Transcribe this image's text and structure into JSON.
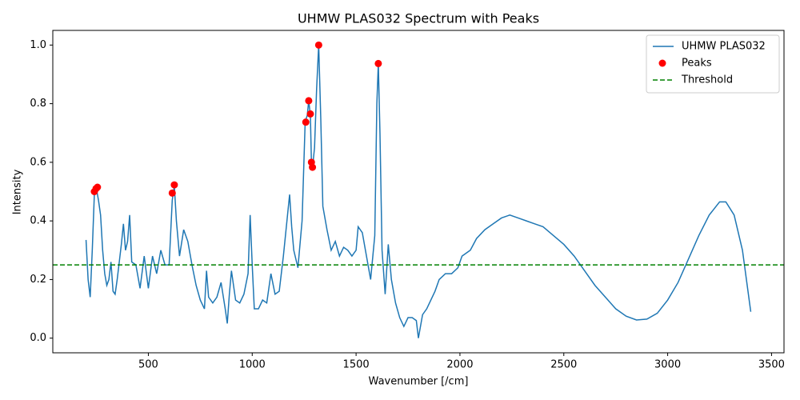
{
  "chart_data": {
    "type": "line",
    "title": "UHMW PLAS032 Spectrum with Peaks",
    "xlabel": "Wavenumber [/cm]",
    "ylabel": "Intensity",
    "x": [
      200,
      210,
      220,
      230,
      240,
      250,
      260,
      270,
      280,
      290,
      300,
      310,
      320,
      330,
      340,
      350,
      370,
      380,
      390,
      400,
      410,
      420,
      440,
      460,
      480,
      500,
      520,
      540,
      560,
      580,
      600,
      615,
      625,
      635,
      650,
      670,
      690,
      710,
      730,
      750,
      770,
      780,
      790,
      810,
      830,
      850,
      870,
      880,
      890,
      900,
      920,
      940,
      960,
      980,
      990,
      1000,
      1010,
      1030,
      1050,
      1070,
      1090,
      1110,
      1130,
      1150,
      1170,
      1180,
      1190,
      1200,
      1220,
      1240,
      1255,
      1265,
      1272,
      1280,
      1285,
      1290,
      1300,
      1310,
      1320,
      1330,
      1340,
      1360,
      1380,
      1400,
      1420,
      1440,
      1460,
      1480,
      1500,
      1510,
      1530,
      1550,
      1570,
      1590,
      1600,
      1607,
      1615,
      1625,
      1640,
      1655,
      1670,
      1690,
      1710,
      1730,
      1750,
      1770,
      1790,
      1800,
      1820,
      1840,
      1860,
      1880,
      1900,
      1930,
      1960,
      1990,
      2010,
      2050,
      2080,
      2120,
      2160,
      2200,
      2240,
      2280,
      2320,
      2360,
      2400,
      2450,
      2500,
      2550,
      2600,
      2650,
      2700,
      2750,
      2800,
      2850,
      2900,
      2950,
      3000,
      3050,
      3100,
      3150,
      3200,
      3250,
      3280,
      3320,
      3360,
      3400
    ],
    "series": [
      {
        "name": "UHMW PLAS032",
        "color": "#1f77b4",
        "values": [
          0.335,
          0.2,
          0.14,
          0.3,
          0.49,
          0.51,
          0.47,
          0.42,
          0.3,
          0.22,
          0.18,
          0.2,
          0.26,
          0.16,
          0.15,
          0.2,
          0.32,
          0.39,
          0.3,
          0.33,
          0.42,
          0.26,
          0.25,
          0.17,
          0.28,
          0.17,
          0.28,
          0.22,
          0.3,
          0.25,
          0.25,
          0.47,
          0.52,
          0.4,
          0.28,
          0.37,
          0.33,
          0.25,
          0.18,
          0.13,
          0.1,
          0.23,
          0.14,
          0.12,
          0.14,
          0.19,
          0.1,
          0.05,
          0.15,
          0.23,
          0.13,
          0.12,
          0.15,
          0.22,
          0.42,
          0.25,
          0.1,
          0.1,
          0.13,
          0.12,
          0.22,
          0.15,
          0.16,
          0.28,
          0.42,
          0.49,
          0.38,
          0.3,
          0.24,
          0.4,
          0.74,
          0.76,
          0.81,
          0.76,
          0.6,
          0.58,
          0.65,
          0.85,
          1.0,
          0.75,
          0.45,
          0.37,
          0.3,
          0.33,
          0.28,
          0.31,
          0.3,
          0.28,
          0.3,
          0.38,
          0.36,
          0.28,
          0.2,
          0.35,
          0.8,
          0.937,
          0.7,
          0.3,
          0.15,
          0.32,
          0.2,
          0.12,
          0.07,
          0.04,
          0.07,
          0.07,
          0.06,
          0.0,
          0.08,
          0.1,
          0.13,
          0.16,
          0.2,
          0.22,
          0.22,
          0.24,
          0.28,
          0.3,
          0.34,
          0.37,
          0.39,
          0.41,
          0.42,
          0.41,
          0.4,
          0.39,
          0.38,
          0.35,
          0.32,
          0.28,
          0.23,
          0.18,
          0.14,
          0.1,
          0.075,
          0.062,
          0.065,
          0.085,
          0.13,
          0.19,
          0.27,
          0.35,
          0.42,
          0.465,
          0.465,
          0.42,
          0.3,
          0.09
        ]
      }
    ],
    "peaks": {
      "name": "Peaks",
      "color": "red",
      "x": [
        240,
        248,
        255,
        615,
        625,
        1258,
        1272,
        1280,
        1285,
        1290,
        1320,
        1607
      ],
      "values": [
        0.5,
        0.51,
        0.515,
        0.495,
        0.523,
        0.737,
        0.81,
        0.765,
        0.6,
        0.583,
        1.0,
        0.937
      ]
    },
    "threshold": {
      "name": "Threshold",
      "color": "green",
      "value": 0.25
    },
    "xlim": [
      40,
      3560
    ],
    "ylim": [
      -0.05,
      1.05
    ],
    "xticks": [
      500,
      1000,
      1500,
      2000,
      2500,
      3000,
      3500
    ],
    "yticks": [
      {
        "value": 0,
        "label": "0.0"
      },
      0.2,
      0.4,
      0.6,
      0.8,
      {
        "value": 1,
        "label": "1.0"
      }
    ],
    "legend": "upper right"
  }
}
